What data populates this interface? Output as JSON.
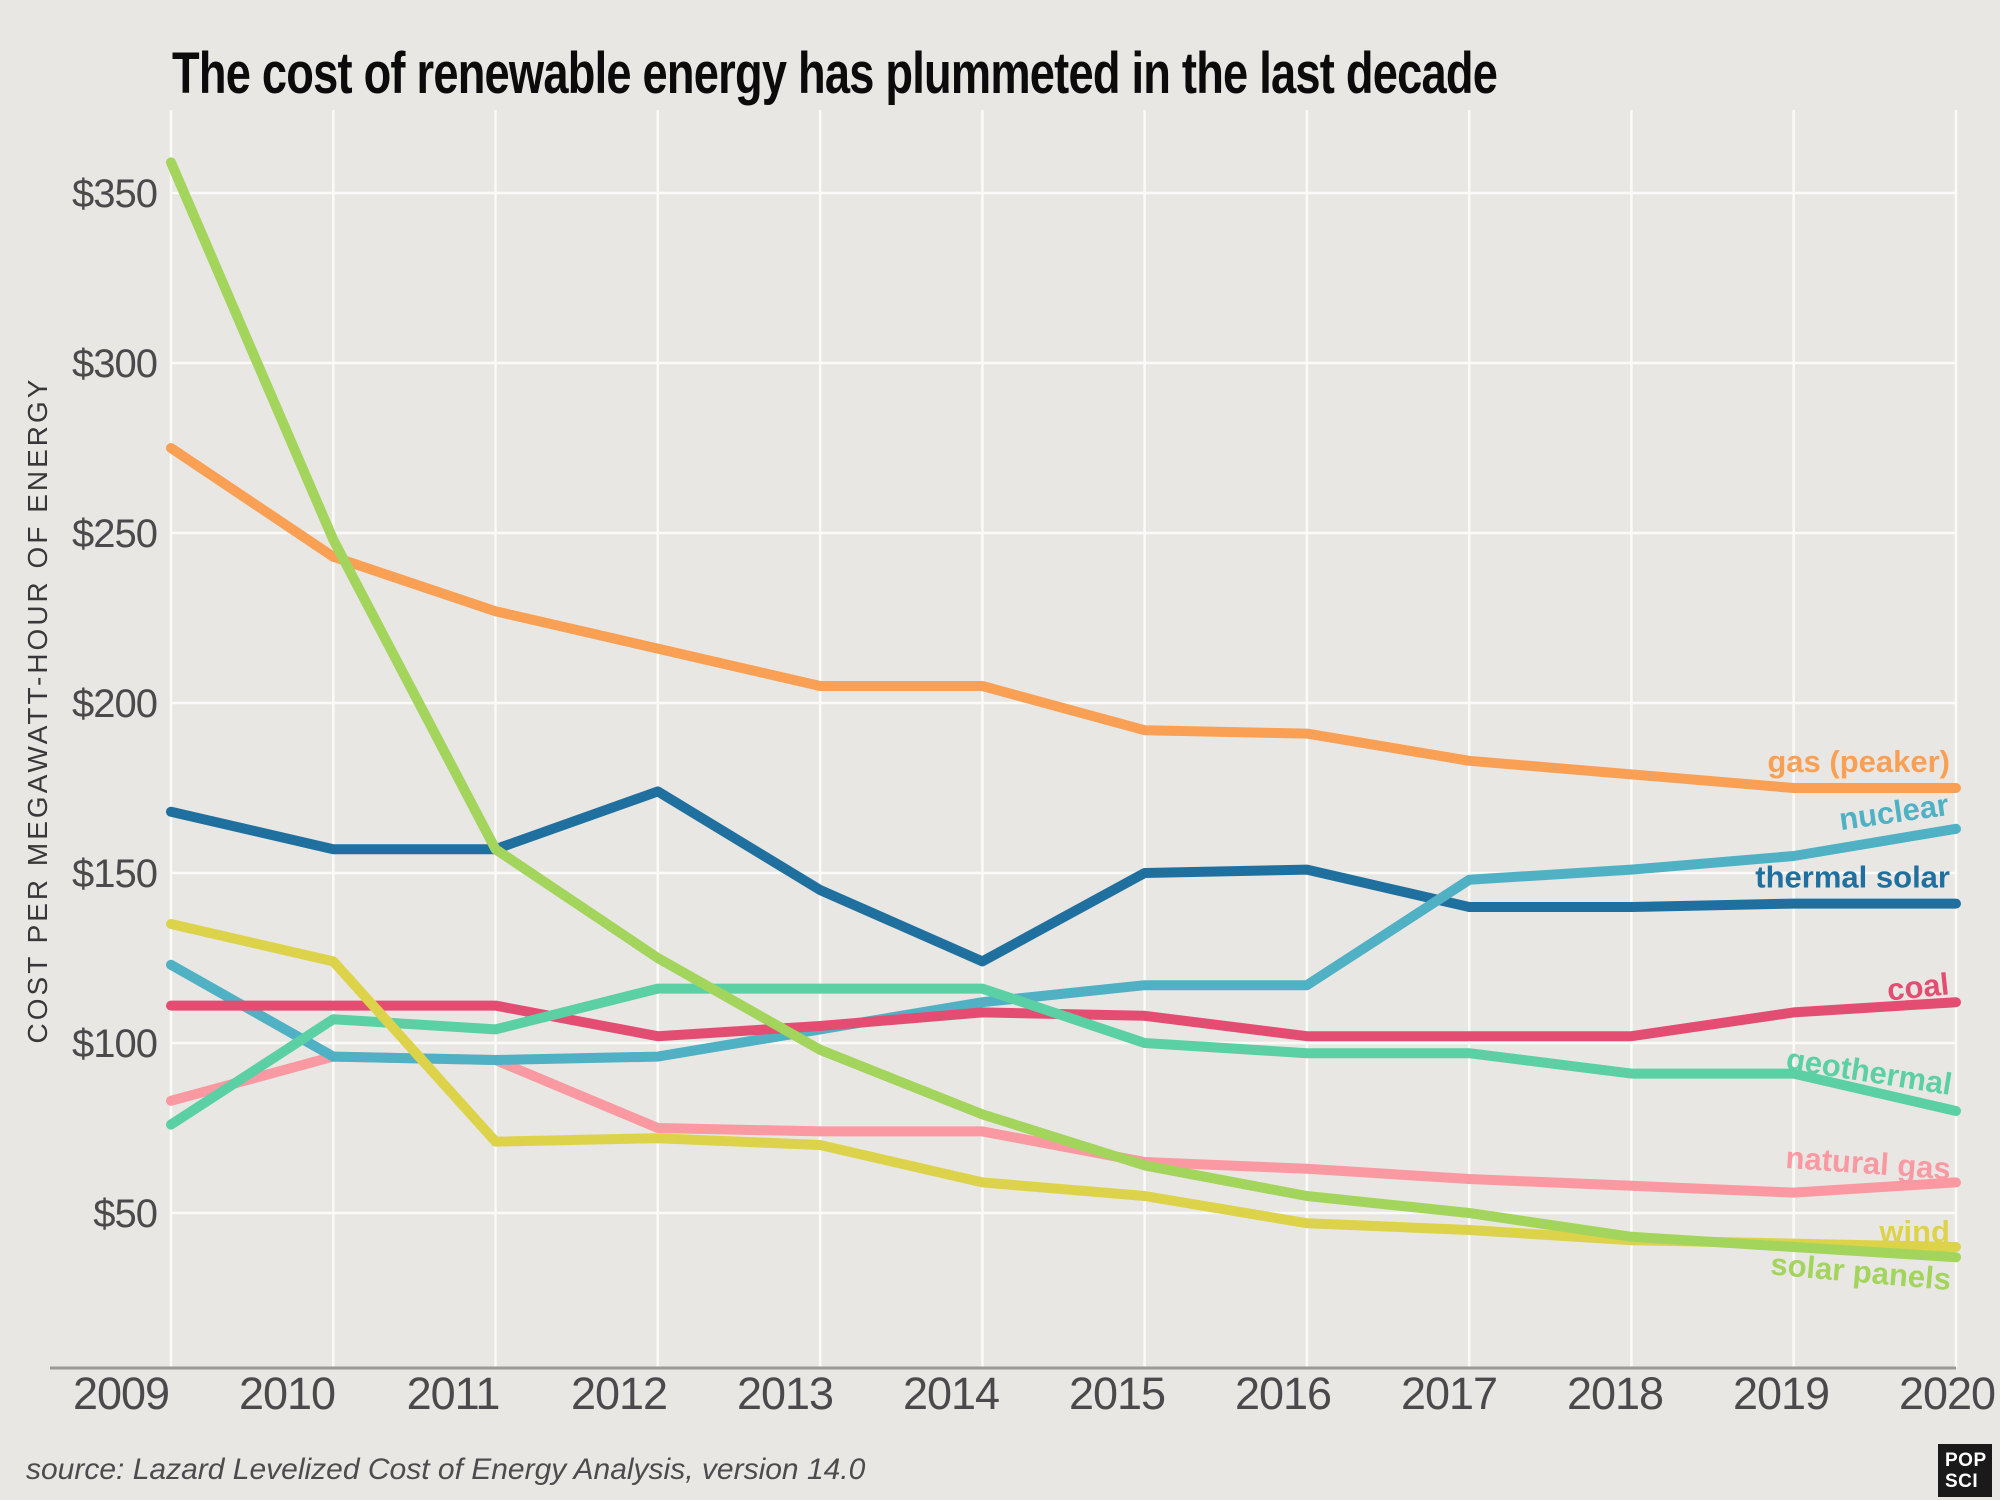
{
  "title": "The cost of renewable energy has plummeted in the last decade",
  "y_axis_title": "COST PER MEGAWATT-HOUR OF ENERGY",
  "source_note": "source: Lazard Levelized Cost of Energy Analysis, version 14.0",
  "logo": {
    "line1": "POP",
    "line2": "SCI"
  },
  "colors": {
    "background": "#E8E7E4",
    "gridline": "#FAFAF8",
    "axis_line": "#9C9A96",
    "tick_text": "#4A4A4C",
    "title_text": "#0B0B0B",
    "source_text": "#4C4C4E",
    "logo_bg": "#1A1A1A",
    "logo_text": "#FFFFFF"
  },
  "chart_data": {
    "type": "line",
    "title": "The cost of renewable energy has plummeted in the last decade",
    "xlabel": "",
    "ylabel": "COST PER MEGAWATT-HOUR OF ENERGY",
    "x": [
      2009,
      2010,
      2011,
      2012,
      2013,
      2014,
      2015,
      2016,
      2017,
      2018,
      2019,
      2020
    ],
    "ylim": [
      0,
      375
    ],
    "yticks": [
      50,
      100,
      150,
      200,
      250,
      300,
      350
    ],
    "ytick_prefix": "$",
    "grid": true,
    "legend_position": "inline-right",
    "series": [
      {
        "name": "gas (peaker)",
        "color": "#F9A055",
        "label_rotate": 0,
        "label_dy": -16,
        "values": [
          275,
          243,
          227,
          216,
          205,
          205,
          192,
          191,
          183,
          179,
          175,
          175
        ]
      },
      {
        "name": "thermal solar",
        "color": "#20709F",
        "label_rotate": 0,
        "label_dy": -16,
        "values": [
          168,
          157,
          157,
          174,
          145,
          124,
          150,
          151,
          140,
          140,
          141,
          141
        ]
      },
      {
        "name": "natural gas",
        "color": "#FA99A1",
        "label_rotate": 4,
        "label_dy": -3,
        "values": [
          83,
          96,
          95,
          75,
          74,
          74,
          65,
          63,
          60,
          58,
          56,
          59
        ]
      },
      {
        "name": "nuclear",
        "color": "#50B1C4",
        "label_rotate": -8,
        "label_dy": -14,
        "values": [
          123,
          96,
          95,
          96,
          104,
          112,
          117,
          117,
          148,
          151,
          155,
          163
        ]
      },
      {
        "name": "coal",
        "color": "#E44D72",
        "label_rotate": -6,
        "label_dy": -8,
        "values": [
          111,
          111,
          111,
          102,
          105,
          109,
          108,
          102,
          102,
          102,
          109,
          112
        ]
      },
      {
        "name": "geothermal",
        "color": "#5BD0A5",
        "label_rotate": 9,
        "label_dy": -16,
        "values": [
          76,
          107,
          104,
          116,
          116,
          116,
          100,
          97,
          97,
          91,
          91,
          80
        ]
      },
      {
        "name": "wind",
        "color": "#DDD34B",
        "label_rotate": 0,
        "label_dy": -5,
        "values": [
          135,
          124,
          71,
          72,
          70,
          59,
          55,
          47,
          45,
          42,
          41,
          40
        ]
      },
      {
        "name": "solar panels",
        "color": "#A3D45C",
        "label_rotate": 5,
        "label_dy": 33,
        "values": [
          359,
          248,
          157,
          125,
          98,
          79,
          64,
          55,
          50,
          43,
          40,
          37
        ]
      }
    ]
  }
}
